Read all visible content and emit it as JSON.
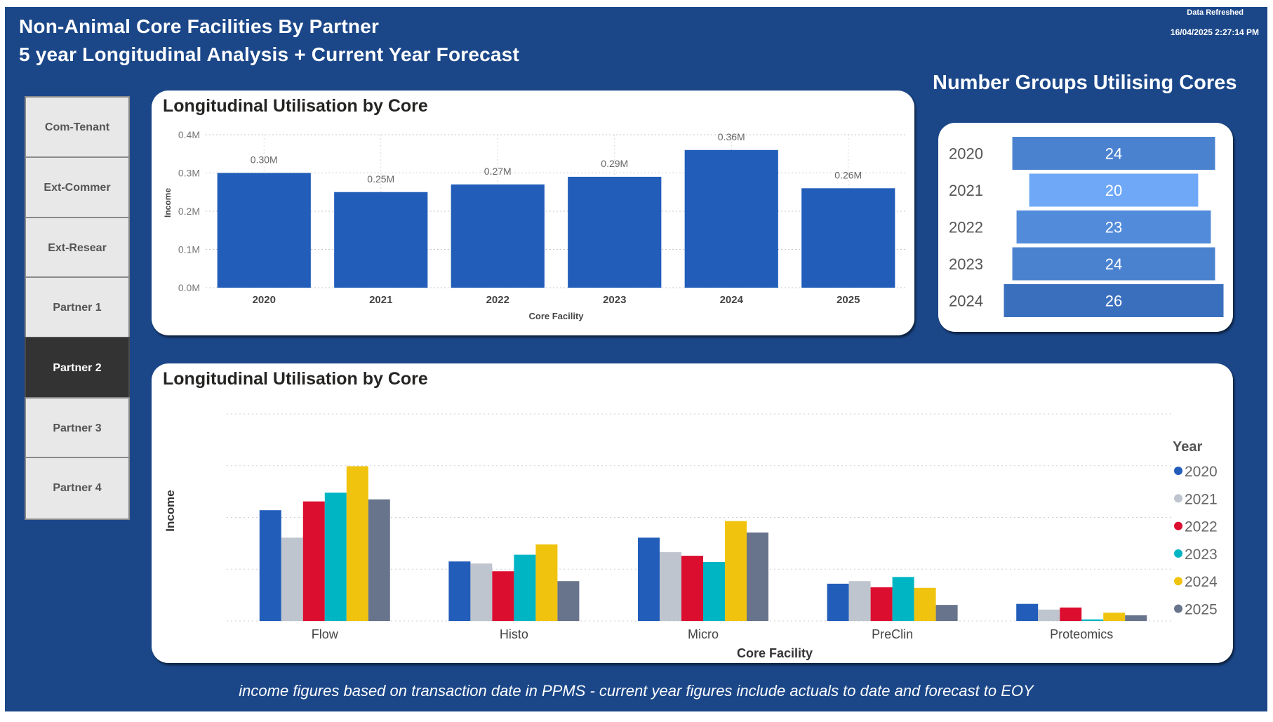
{
  "header": {
    "title_line1": "Non-Animal Core Facilities By Partner",
    "title_line2": "5 year Longitudinal Analysis + Current Year Forecast",
    "refresh_label": "Data Refreshed",
    "refresh_time": "16/04/2025 2:27:14 PM",
    "groups_title": "Number Groups Utilising Cores"
  },
  "nav": {
    "selected": "Partner 2",
    "items": [
      {
        "label": "Com-Tenant"
      },
      {
        "label": "Ext-Commer"
      },
      {
        "label": "Ext-Resear"
      },
      {
        "label": "Partner 1"
      },
      {
        "label": "Partner 2"
      },
      {
        "label": "Partner 3"
      },
      {
        "label": "Partner 4"
      }
    ]
  },
  "colors": {
    "background": "#1b4789",
    "bar_primary": "#225dba",
    "year_2020": "#225dba",
    "year_2021": "#bfc5ce",
    "year_2022": "#dc0e30",
    "year_2023": "#00b5c3",
    "year_2024": "#f0c30f",
    "year_2025": "#68748c"
  },
  "footer": {
    "note": "income figures based on transaction date in PPMS - current year figures include actuals to date and forecast to EOY"
  },
  "chart_data": [
    {
      "type": "bar",
      "title": "Longitudinal Utilisation by Core",
      "xlabel": "Core Facility",
      "ylabel": "Income",
      "categories": [
        "2020",
        "2021",
        "2022",
        "2023",
        "2024",
        "2025"
      ],
      "values": [
        0.3,
        0.25,
        0.27,
        0.29,
        0.36,
        0.26
      ],
      "data_labels": [
        "0.30M",
        "0.25M",
        "0.27M",
        "0.29M",
        "0.36M",
        "0.26M"
      ],
      "units": "M",
      "ylim": [
        0,
        0.4
      ],
      "yticks": [
        0.0,
        0.1,
        0.2,
        0.3,
        0.4
      ],
      "ytick_labels": [
        "0.0M",
        "0.1M",
        "0.2M",
        "0.3M",
        "0.4M"
      ],
      "grid": true
    },
    {
      "type": "bar",
      "subtype": "funnel",
      "title": "Number Groups Utilising Cores",
      "categories": [
        "2020",
        "2021",
        "2022",
        "2023",
        "2024"
      ],
      "values": [
        24,
        20,
        23,
        24,
        26
      ],
      "bar_colors": [
        "#4a82d0",
        "#6ea8f7",
        "#528bd9",
        "#4a82d0",
        "#3a6fbd"
      ]
    },
    {
      "type": "bar",
      "subtype": "clustered",
      "title": "Longitudinal Utilisation by Core",
      "xlabel": "Core Facility",
      "ylabel": "Income",
      "categories": [
        "Flow",
        "Histo",
        "Micro",
        "PreClin",
        "Proteomics"
      ],
      "ylim": [
        0,
        4
      ],
      "yaxis_labels_visible": false,
      "grid": true,
      "legend_title": "Year",
      "legend_position": "right",
      "series": [
        {
          "name": "2020",
          "color": "#225dba",
          "values": [
            2.14,
            1.15,
            1.61,
            0.72,
            0.33
          ]
        },
        {
          "name": "2021",
          "color": "#bfc5ce",
          "values": [
            1.61,
            1.11,
            1.33,
            0.77,
            0.22
          ]
        },
        {
          "name": "2022",
          "color": "#dc0e30",
          "values": [
            2.31,
            0.96,
            1.26,
            0.65,
            0.26
          ]
        },
        {
          "name": "2023",
          "color": "#00b5c3",
          "values": [
            2.48,
            1.28,
            1.14,
            0.85,
            0.03
          ]
        },
        {
          "name": "2024",
          "color": "#f0c30f",
          "values": [
            2.99,
            1.48,
            1.93,
            0.64,
            0.16
          ]
        },
        {
          "name": "2025",
          "color": "#68748c",
          "values": [
            2.35,
            0.77,
            1.71,
            0.31,
            0.11
          ]
        }
      ]
    }
  ]
}
